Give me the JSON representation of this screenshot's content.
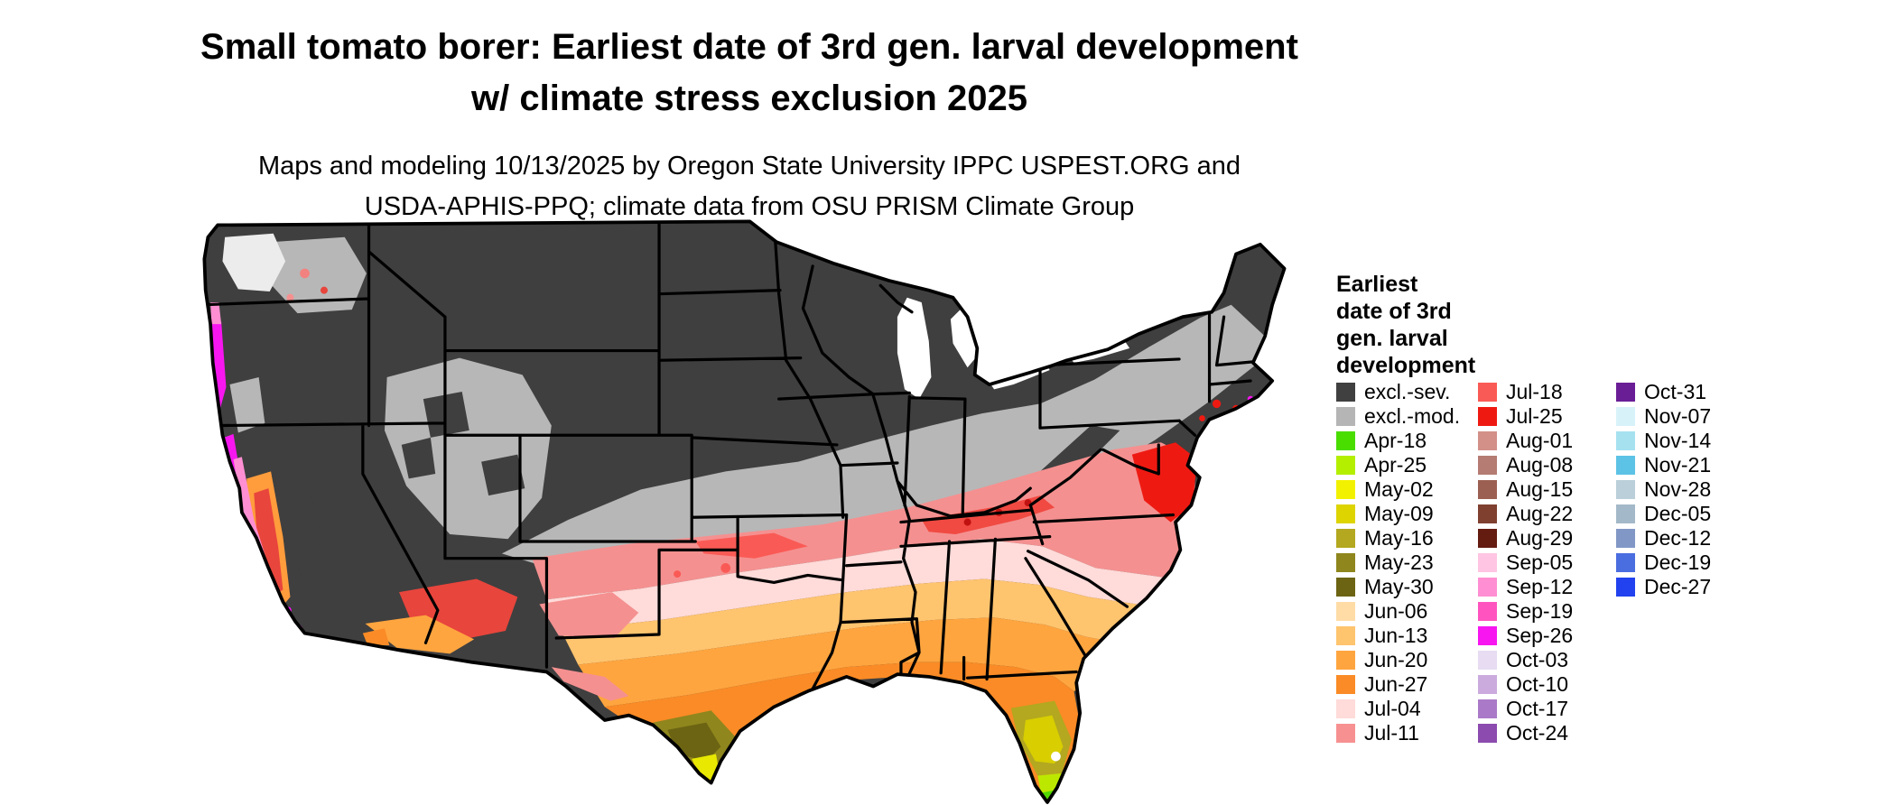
{
  "header": {
    "title_line1": "Small tomato borer: Earliest date of 3rd gen. larval development",
    "title_line2": "w/ climate stress exclusion 2025",
    "subtitle_line1": "Maps and modeling 10/13/2025 by Oregon State University IPPC USPEST.ORG and",
    "subtitle_line2": "USDA-APHIS-PPQ; climate data from OSU PRISM Climate Group"
  },
  "legend": {
    "title_lines": [
      "Earliest",
      "date of 3rd",
      "gen. larval",
      "development"
    ],
    "columns": [
      {
        "items": [
          {
            "label": "excl.-sev.",
            "color": "#404040"
          },
          {
            "label": "excl.-mod.",
            "color": "#b5b5b5"
          },
          {
            "label": "Apr-18",
            "color": "#49dd00"
          },
          {
            "label": "Apr-25",
            "color": "#b4ef00"
          },
          {
            "label": "May-02",
            "color": "#f2f200"
          },
          {
            "label": "May-09",
            "color": "#ded400"
          },
          {
            "label": "May-16",
            "color": "#b3a81f"
          },
          {
            "label": "May-23",
            "color": "#8f861d"
          },
          {
            "label": "May-30",
            "color": "#6c6413"
          },
          {
            "label": "Jun-06",
            "color": "#ffdca6"
          },
          {
            "label": "Jun-13",
            "color": "#ffc46e"
          },
          {
            "label": "Jun-20",
            "color": "#ffa53f"
          },
          {
            "label": "Jun-27",
            "color": "#fa8b26"
          },
          {
            "label": "Jul-04",
            "color": "#ffdbd9"
          },
          {
            "label": "Jul-11",
            "color": "#f79191"
          }
        ]
      },
      {
        "items": [
          {
            "label": "Jul-18",
            "color": "#fa5a55"
          },
          {
            "label": "Jul-25",
            "color": "#ee1a12"
          },
          {
            "label": "Aug-01",
            "color": "#d29089"
          },
          {
            "label": "Aug-08",
            "color": "#b47c72"
          },
          {
            "label": "Aug-15",
            "color": "#9c6052"
          },
          {
            "label": "Aug-22",
            "color": "#7f402f"
          },
          {
            "label": "Aug-29",
            "color": "#641b10"
          },
          {
            "label": "Sep-05",
            "color": "#ffc5e2"
          },
          {
            "label": "Sep-12",
            "color": "#ff8fd2"
          },
          {
            "label": "Sep-19",
            "color": "#ff54c0"
          },
          {
            "label": "Sep-26",
            "color": "#f716f0"
          },
          {
            "label": "Oct-03",
            "color": "#e7dcf2"
          },
          {
            "label": "Oct-10",
            "color": "#cbabde"
          },
          {
            "label": "Oct-17",
            "color": "#aa7ac8"
          },
          {
            "label": "Oct-24",
            "color": "#8c4bae"
          }
        ]
      },
      {
        "items": [
          {
            "label": "Oct-31",
            "color": "#6a1e96"
          },
          {
            "label": "Nov-07",
            "color": "#d8f2fa"
          },
          {
            "label": "Nov-14",
            "color": "#a6e1f0"
          },
          {
            "label": "Nov-21",
            "color": "#5dc3e6"
          },
          {
            "label": "Nov-28",
            "color": "#bacfd9"
          },
          {
            "label": "Dec-05",
            "color": "#a3b9c9"
          },
          {
            "label": "Dec-12",
            "color": "#8197c6"
          },
          {
            "label": "Dec-19",
            "color": "#4a6de0"
          },
          {
            "label": "Dec-27",
            "color": "#2142ee"
          }
        ]
      }
    ]
  }
}
